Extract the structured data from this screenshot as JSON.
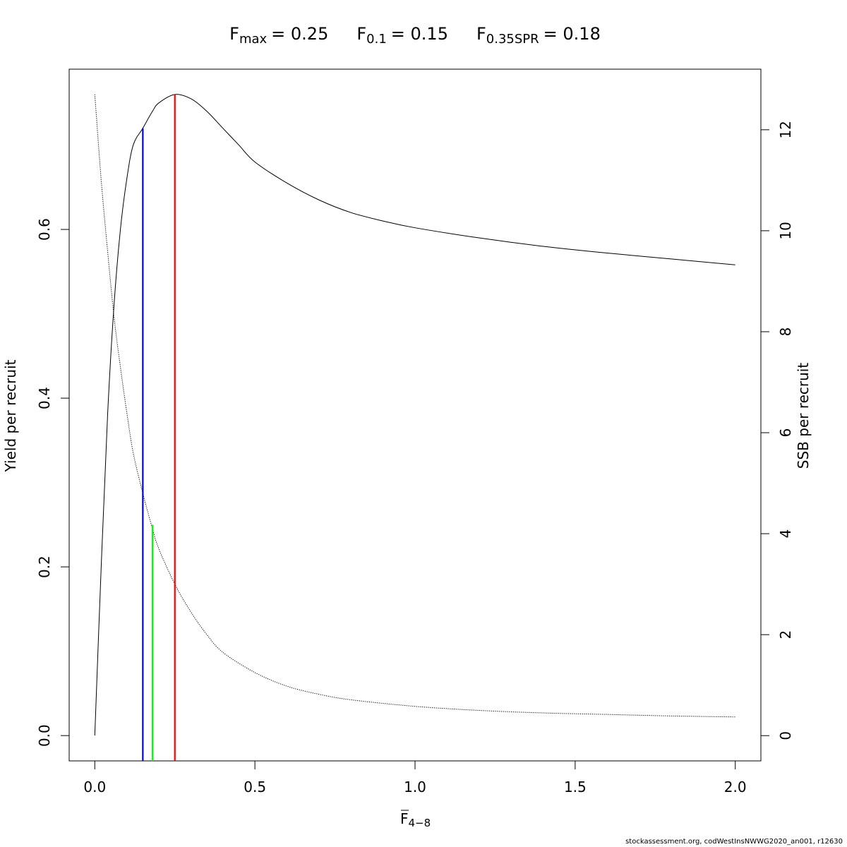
{
  "chart_data": {
    "type": "line",
    "title": {
      "fmax": {
        "base": "F",
        "sub": "max",
        "value": "= 0.25"
      },
      "f01": {
        "base": "F",
        "sub": "0.1",
        "value": "= 0.15"
      },
      "fspr": {
        "base": "F",
        "sub": "0.35SPR",
        "value": "= 0.18"
      }
    },
    "xlabel": {
      "base": "F",
      "sub": "4−8"
    },
    "ylabel_left": "Yield per recruit",
    "ylabel_right": "SSB per recruit",
    "xlim": [
      -0.08,
      2.08
    ],
    "ylim_left": [
      -0.03,
      0.79
    ],
    "ylim_right": [
      -0.5,
      13.2
    ],
    "x_ticks": [
      0.0,
      0.5,
      1.0,
      1.5,
      2.0
    ],
    "x_tick_labels": [
      "0.0",
      "0.5",
      "1.0",
      "1.5",
      "2.0"
    ],
    "y_left_ticks": [
      0.0,
      0.2,
      0.4,
      0.6
    ],
    "y_left_tick_labels": [
      "0.0",
      "0.2",
      "0.4",
      "0.6"
    ],
    "y_right_ticks": [
      0,
      2,
      4,
      6,
      8,
      10,
      12
    ],
    "y_right_tick_labels": [
      "0",
      "2",
      "4",
      "6",
      "8",
      "10",
      "12"
    ],
    "series": [
      {
        "axis": "left",
        "style": "solid",
        "color": "#000000",
        "x": [
          0,
          0.02,
          0.04,
          0.06,
          0.08,
          0.1,
          0.12,
          0.15,
          0.18,
          0.2,
          0.25,
          0.3,
          0.35,
          0.4,
          0.45,
          0.5,
          0.6,
          0.7,
          0.8,
          0.9,
          1.0,
          1.2,
          1.4,
          1.6,
          1.8,
          2.0
        ],
        "y": [
          0.0,
          0.2,
          0.38,
          0.51,
          0.6,
          0.66,
          0.7,
          0.72,
          0.74,
          0.75,
          0.76,
          0.755,
          0.74,
          0.72,
          0.7,
          0.68,
          0.655,
          0.635,
          0.62,
          0.61,
          0.602,
          0.59,
          0.58,
          0.572,
          0.565,
          0.558
        ]
      },
      {
        "axis": "right",
        "style": "dotted",
        "color": "#000000",
        "x": [
          0,
          0.02,
          0.04,
          0.06,
          0.08,
          0.1,
          0.12,
          0.15,
          0.18,
          0.2,
          0.25,
          0.3,
          0.35,
          0.4,
          0.5,
          0.6,
          0.7,
          0.8,
          1.0,
          1.2,
          1.4,
          1.6,
          1.8,
          2.0
        ],
        "y": [
          12.7,
          11.0,
          9.6,
          8.3,
          7.3,
          6.4,
          5.6,
          4.8,
          4.1,
          3.7,
          3.0,
          2.45,
          2.0,
          1.65,
          1.25,
          0.98,
          0.82,
          0.71,
          0.58,
          0.5,
          0.45,
          0.42,
          0.39,
          0.37
        ]
      }
    ],
    "reference_lines": [
      {
        "name": "F0.1",
        "x": 0.15,
        "y_top": 0.72,
        "color": "#0000ff"
      },
      {
        "name": "F0.35SPR",
        "x": 0.18,
        "y_top": 0.25,
        "color": "#00ff00"
      },
      {
        "name": "Fmax",
        "x": 0.25,
        "y_top": 0.76,
        "color": "#ff0000"
      }
    ]
  },
  "footer": {
    "credit": "stockassessment.org, codWestInsNWWG2020_an001, r12630"
  }
}
